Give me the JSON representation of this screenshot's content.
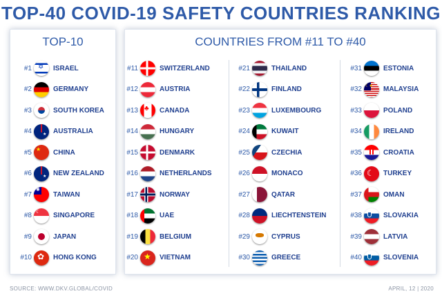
{
  "title": "TOP-40 COVID-19 SAFETY COUNTRIES RANKING",
  "left_panel": {
    "title": "TOP-10",
    "items": [
      {
        "rank": "#1",
        "country": "ISRAEL",
        "flag_colors": [
          "#ffffff",
          "#0038b8",
          "#ffffff"
        ],
        "flag_icon": "israel-flag-icon"
      },
      {
        "rank": "#2",
        "country": "GERMANY",
        "flag_colors": [
          "#000000",
          "#dd0000",
          "#ffce00"
        ],
        "flag_icon": "germany-flag-icon"
      },
      {
        "rank": "#3",
        "country": "SOUTH KOREA",
        "flag_colors": [
          "#ffffff",
          "#cd2e3a",
          "#0047a0"
        ],
        "flag_icon": "south-korea-flag-icon"
      },
      {
        "rank": "#4",
        "country": "AUSTRALIA",
        "flag_colors": [
          "#00247d",
          "#cf142b",
          "#ffffff"
        ],
        "flag_icon": "australia-flag-icon"
      },
      {
        "rank": "#5",
        "country": "CHINA",
        "flag_colors": [
          "#de2910",
          "#ffde00"
        ],
        "flag_icon": "china-flag-icon"
      },
      {
        "rank": "#6",
        "country": "NEW ZEALAND",
        "flag_colors": [
          "#00247d",
          "#cc142b",
          "#ffffff"
        ],
        "flag_icon": "new-zealand-flag-icon"
      },
      {
        "rank": "#7",
        "country": "TAIWAN",
        "flag_colors": [
          "#fe0000",
          "#000095",
          "#ffffff"
        ],
        "flag_icon": "taiwan-flag-icon"
      },
      {
        "rank": "#8",
        "country": "SINGAPORE",
        "flag_colors": [
          "#ef3340",
          "#ffffff"
        ],
        "flag_icon": "singapore-flag-icon"
      },
      {
        "rank": "#9",
        "country": "JAPAN",
        "flag_colors": [
          "#ffffff",
          "#bc002d"
        ],
        "flag_icon": "japan-flag-icon"
      },
      {
        "rank": "#10",
        "country": "HONG KONG",
        "flag_colors": [
          "#de2910",
          "#ffffff"
        ],
        "flag_icon": "hong-kong-flag-icon"
      }
    ]
  },
  "right_panel": {
    "title": "COUNTRIES FROM #11 TO #40",
    "columns": [
      [
        {
          "rank": "#11",
          "country": "SWITZERLAND",
          "flag_colors": [
            "#ff0000",
            "#ffffff"
          ],
          "flag_icon": "switzerland-flag-icon"
        },
        {
          "rank": "#12",
          "country": "AUSTRIA",
          "flag_colors": [
            "#ed2939",
            "#ffffff",
            "#ed2939"
          ],
          "flag_icon": "austria-flag-icon"
        },
        {
          "rank": "#13",
          "country": "CANADA",
          "flag_colors": [
            "#ff0000",
            "#ffffff"
          ],
          "flag_icon": "canada-flag-icon"
        },
        {
          "rank": "#14",
          "country": "HUNGARY",
          "flag_colors": [
            "#ce2939",
            "#ffffff",
            "#477050"
          ],
          "flag_icon": "hungary-flag-icon"
        },
        {
          "rank": "#15",
          "country": "DENMARK",
          "flag_colors": [
            "#c60c30",
            "#ffffff"
          ],
          "flag_icon": "denmark-flag-icon"
        },
        {
          "rank": "#16",
          "country": "NETHERLANDS",
          "flag_colors": [
            "#ae1c28",
            "#ffffff",
            "#21468b"
          ],
          "flag_icon": "netherlands-flag-icon"
        },
        {
          "rank": "#17",
          "country": "NORWAY",
          "flag_colors": [
            "#ba0c2f",
            "#ffffff",
            "#00205b"
          ],
          "flag_icon": "norway-flag-icon"
        },
        {
          "rank": "#18",
          "country": "UAE",
          "flag_colors": [
            "#00732f",
            "#ffffff",
            "#000000",
            "#ff0000"
          ],
          "flag_icon": "uae-flag-icon"
        },
        {
          "rank": "#19",
          "country": "BELGIUM",
          "flag_colors": [
            "#000000",
            "#fae042",
            "#ed2939"
          ],
          "flag_icon": "belgium-flag-icon"
        },
        {
          "rank": "#20",
          "country": "VIETNAM",
          "flag_colors": [
            "#da251d",
            "#ffff00"
          ],
          "flag_icon": "vietnam-flag-icon"
        }
      ],
      [
        {
          "rank": "#21",
          "country": "THAILAND",
          "flag_colors": [
            "#a51931",
            "#f4f5f8",
            "#2d2a4a"
          ],
          "flag_icon": "thailand-flag-icon"
        },
        {
          "rank": "#22",
          "country": "FINLAND",
          "flag_colors": [
            "#ffffff",
            "#003580"
          ],
          "flag_icon": "finland-flag-icon"
        },
        {
          "rank": "#23",
          "country": "LUXEMBOURG",
          "flag_colors": [
            "#ef3340",
            "#ffffff",
            "#00a3e0"
          ],
          "flag_icon": "luxembourg-flag-icon"
        },
        {
          "rank": "#24",
          "country": "KUWAIT",
          "flag_colors": [
            "#007a3d",
            "#ffffff",
            "#ce1126",
            "#000000"
          ],
          "flag_icon": "kuwait-flag-icon"
        },
        {
          "rank": "#25",
          "country": "CZECHIA",
          "flag_colors": [
            "#ffffff",
            "#d7141a",
            "#11457e"
          ],
          "flag_icon": "czechia-flag-icon"
        },
        {
          "rank": "#26",
          "country": "MONACO",
          "flag_colors": [
            "#ce1126",
            "#ffffff"
          ],
          "flag_icon": "monaco-flag-icon"
        },
        {
          "rank": "#27",
          "country": "QATAR",
          "flag_colors": [
            "#8a1538",
            "#ffffff"
          ],
          "flag_icon": "qatar-flag-icon"
        },
        {
          "rank": "#28",
          "country": "LIECHTENSTEIN",
          "flag_colors": [
            "#002b7f",
            "#ce1126"
          ],
          "flag_icon": "liechtenstein-flag-icon"
        },
        {
          "rank": "#29",
          "country": "CYPRUS",
          "flag_colors": [
            "#ffffff",
            "#d57800"
          ],
          "flag_icon": "cyprus-flag-icon"
        },
        {
          "rank": "#30",
          "country": "GREECE",
          "flag_colors": [
            "#0d5eaf",
            "#ffffff"
          ],
          "flag_icon": "greece-flag-icon"
        }
      ],
      [
        {
          "rank": "#31",
          "country": "ESTONIA",
          "flag_colors": [
            "#0072ce",
            "#000000",
            "#ffffff"
          ],
          "flag_icon": "estonia-flag-icon"
        },
        {
          "rank": "#32",
          "country": "MALAYSIA",
          "flag_colors": [
            "#cc0001",
            "#ffffff",
            "#010066",
            "#ffcc00"
          ],
          "flag_icon": "malaysia-flag-icon"
        },
        {
          "rank": "#33",
          "country": "POLAND",
          "flag_colors": [
            "#ffffff",
            "#dc143c"
          ],
          "flag_icon": "poland-flag-icon"
        },
        {
          "rank": "#34",
          "country": "IRELAND",
          "flag_colors": [
            "#169b62",
            "#ffffff",
            "#ff883e"
          ],
          "flag_icon": "ireland-flag-icon"
        },
        {
          "rank": "#35",
          "country": "CROATIA",
          "flag_colors": [
            "#ff0000",
            "#ffffff",
            "#171796"
          ],
          "flag_icon": "croatia-flag-icon"
        },
        {
          "rank": "#36",
          "country": "TURKEY",
          "flag_colors": [
            "#e30a17",
            "#ffffff"
          ],
          "flag_icon": "turkey-flag-icon"
        },
        {
          "rank": "#37",
          "country": "OMAN",
          "flag_colors": [
            "#db161b",
            "#ffffff",
            "#008000"
          ],
          "flag_icon": "oman-flag-icon"
        },
        {
          "rank": "#38",
          "country": "SLOVAKIA",
          "flag_colors": [
            "#ffffff",
            "#0b4ea2",
            "#ee1c25"
          ],
          "flag_icon": "slovakia-flag-icon"
        },
        {
          "rank": "#39",
          "country": "LATVIA",
          "flag_colors": [
            "#9e3039",
            "#ffffff",
            "#9e3039"
          ],
          "flag_icon": "latvia-flag-icon"
        },
        {
          "rank": "#40",
          "country": "SLOVENIA",
          "flag_colors": [
            "#ffffff",
            "#005da4",
            "#ed1c24"
          ],
          "flag_icon": "slovenia-flag-icon"
        }
      ]
    ]
  },
  "footer": {
    "source": "SOURCE: WWW.DKV.GLOBAL/COVID",
    "date": "APRIL, 12 | 2020"
  },
  "colors": {
    "title": "#2e5aa8",
    "country_text": "#1f3f8f",
    "footer_text": "#8a93a3"
  }
}
